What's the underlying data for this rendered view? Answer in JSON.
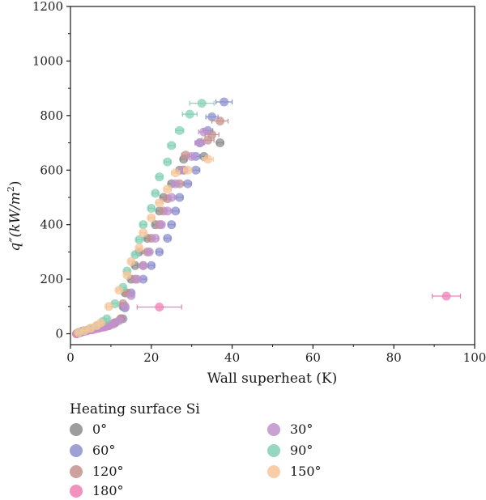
{
  "chart_data": {
    "type": "scatter",
    "title": "",
    "xlabel": "Wall superheat (K)",
    "ylabel": "q″(kW/m²)",
    "ylabel_parts": {
      "main": "q″(kW/m",
      "sup": "2",
      "tail": ")"
    },
    "xlim": [
      0,
      100
    ],
    "ylim": [
      -40,
      1200
    ],
    "xticks": [
      "0",
      "20",
      "40",
      "60",
      "80",
      "100"
    ],
    "yticks": [
      "0",
      "200",
      "400",
      "600",
      "800",
      "1000",
      "1200"
    ],
    "grid": false,
    "legend": {
      "title": "Heating surface Si",
      "placement": "below-plot"
    },
    "series": [
      {
        "name": "0°",
        "color": "#8c8c8c",
        "points": [
          [
            1.5,
            0,
            0.4
          ],
          [
            2.5,
            5,
            0.5
          ],
          [
            3.5,
            10,
            0.5
          ],
          [
            5,
            15,
            0.5
          ],
          [
            6.5,
            20,
            0.5
          ],
          [
            8,
            25,
            0.5
          ],
          [
            9.5,
            30,
            0.5
          ],
          [
            11,
            40,
            0.5
          ],
          [
            12.5,
            55,
            0.5
          ],
          [
            13,
            100,
            0.6
          ],
          [
            13.5,
            150,
            0.6
          ],
          [
            15,
            200,
            0.6
          ],
          [
            16,
            250,
            0.6
          ],
          [
            17,
            300,
            0.6
          ],
          [
            19,
            350,
            0.6
          ],
          [
            21,
            400,
            0.6
          ],
          [
            22,
            450,
            0.7
          ],
          [
            23,
            500,
            0.7
          ],
          [
            25,
            550,
            0.8
          ],
          [
            27,
            600,
            0.8
          ],
          [
            28,
            640,
            0.8
          ],
          [
            33,
            650,
            0.9
          ],
          [
            37,
            700,
            0.8
          ]
        ]
      },
      {
        "name": "60°",
        "color": "#8c90cc",
        "points": [
          [
            2,
            5,
            0.5
          ],
          [
            3.5,
            10,
            0.5
          ],
          [
            5,
            15,
            0.5
          ],
          [
            6.5,
            20,
            0.5
          ],
          [
            8,
            25,
            0.5
          ],
          [
            9.5,
            30,
            0.5
          ],
          [
            11,
            40,
            0.5
          ],
          [
            13,
            55,
            0.5
          ],
          [
            13.5,
            95,
            0.6
          ],
          [
            15,
            150,
            0.6
          ],
          [
            18,
            200,
            0.7
          ],
          [
            20,
            250,
            0.7
          ],
          [
            22,
            300,
            0.7
          ],
          [
            24,
            350,
            0.8
          ],
          [
            25,
            400,
            0.8
          ],
          [
            26,
            450,
            0.8
          ],
          [
            27,
            500,
            0.8
          ],
          [
            29,
            550,
            0.9
          ],
          [
            31,
            600,
            1.0
          ],
          [
            31,
            650,
            1.0
          ],
          [
            32,
            700,
            1.0
          ],
          [
            34,
            745,
            1.2
          ],
          [
            35,
            795,
            1.5
          ],
          [
            38,
            850,
            2.0
          ]
        ]
      },
      {
        "name": "120°",
        "color": "#c4908c",
        "points": [
          [
            2,
            5,
            0.5
          ],
          [
            3,
            10,
            0.5
          ],
          [
            4.5,
            15,
            0.5
          ],
          [
            6,
            20,
            0.5
          ],
          [
            7.5,
            25,
            0.5
          ],
          [
            9,
            30,
            0.5
          ],
          [
            11,
            40,
            0.5
          ],
          [
            12.5,
            55,
            0.5
          ],
          [
            13,
            110,
            0.6
          ],
          [
            14,
            150,
            0.6
          ],
          [
            16,
            200,
            0.6
          ],
          [
            18,
            250,
            0.7
          ],
          [
            19,
            300,
            0.7
          ],
          [
            20,
            350,
            0.7
          ],
          [
            22,
            400,
            0.7
          ],
          [
            23,
            450,
            0.8
          ],
          [
            24,
            495,
            0.8
          ],
          [
            27,
            550,
            0.9
          ],
          [
            28,
            600,
            1.0
          ],
          [
            28.5,
            655,
            1.0
          ],
          [
            34,
            710,
            1.5
          ],
          [
            35,
            730,
            1.7
          ],
          [
            37,
            780,
            2.0
          ]
        ]
      },
      {
        "name": "180°",
        "color": "#ef7fb4",
        "points": [
          [
            1.5,
            0,
            0.4
          ],
          [
            2.5,
            5,
            0.5
          ],
          [
            4,
            10,
            0.5
          ],
          [
            5.5,
            15,
            0.5
          ],
          [
            7,
            20,
            0.5
          ],
          [
            8.5,
            25,
            0.5
          ],
          [
            10,
            35,
            0.5
          ],
          [
            22,
            98,
            5.5
          ],
          [
            93,
            138,
            3.5
          ]
        ]
      },
      {
        "name": "30°",
        "color": "#bf92cc",
        "points": [
          [
            2,
            3,
            0.5
          ],
          [
            3,
            8,
            0.5
          ],
          [
            4.5,
            13,
            0.5
          ],
          [
            6,
            18,
            0.5
          ],
          [
            7.5,
            23,
            0.5
          ],
          [
            9,
            28,
            0.5
          ],
          [
            10.5,
            35,
            0.5
          ],
          [
            12,
            48,
            0.5
          ],
          [
            13.5,
            100,
            0.6
          ],
          [
            15,
            140,
            0.6
          ],
          [
            16.5,
            200,
            0.6
          ],
          [
            18,
            250,
            0.6
          ],
          [
            19.5,
            300,
            0.7
          ],
          [
            21,
            350,
            0.7
          ],
          [
            22.5,
            400,
            0.7
          ],
          [
            24,
            450,
            0.8
          ],
          [
            25,
            500,
            0.8
          ],
          [
            26,
            550,
            0.9
          ],
          [
            28,
            600,
            0.9
          ],
          [
            30,
            650,
            1.0
          ],
          [
            32,
            700,
            1.2
          ],
          [
            33,
            740,
            1.3
          ]
        ]
      },
      {
        "name": "90°",
        "color": "#84d0b4",
        "points": [
          [
            2,
            5,
            0.5
          ],
          [
            3.5,
            12,
            0.5
          ],
          [
            5,
            20,
            0.5
          ],
          [
            6.5,
            30,
            0.5
          ],
          [
            8,
            45,
            0.5
          ],
          [
            9,
            55,
            0.5
          ],
          [
            11,
            110,
            0.6
          ],
          [
            13,
            170,
            0.6
          ],
          [
            14,
            230,
            0.6
          ],
          [
            16,
            290,
            0.6
          ],
          [
            17,
            345,
            0.7
          ],
          [
            18,
            400,
            0.7
          ],
          [
            20,
            460,
            0.7
          ],
          [
            21,
            515,
            0.7
          ],
          [
            22,
            575,
            0.8
          ],
          [
            24,
            630,
            0.8
          ],
          [
            25,
            690,
            0.9
          ],
          [
            27,
            745,
            1.0
          ],
          [
            29.5,
            805,
            1.8
          ],
          [
            32.5,
            845,
            3.0
          ]
        ]
      },
      {
        "name": "150°",
        "color": "#f7c69a",
        "points": [
          [
            2,
            5,
            0.5
          ],
          [
            3.5,
            12,
            0.5
          ],
          [
            5,
            20,
            0.5
          ],
          [
            6.5,
            30,
            0.5
          ],
          [
            7.5,
            40,
            0.5
          ],
          [
            9.5,
            100,
            0.6
          ],
          [
            12,
            160,
            0.6
          ],
          [
            14,
            215,
            0.6
          ],
          [
            15,
            265,
            0.6
          ],
          [
            17,
            315,
            0.6
          ],
          [
            18,
            370,
            0.7
          ],
          [
            20,
            425,
            0.7
          ],
          [
            22,
            480,
            0.8
          ],
          [
            24,
            530,
            0.9
          ],
          [
            26,
            590,
            1.0
          ],
          [
            29,
            600,
            1.0
          ],
          [
            34,
            640,
            1.3
          ]
        ]
      }
    ]
  }
}
